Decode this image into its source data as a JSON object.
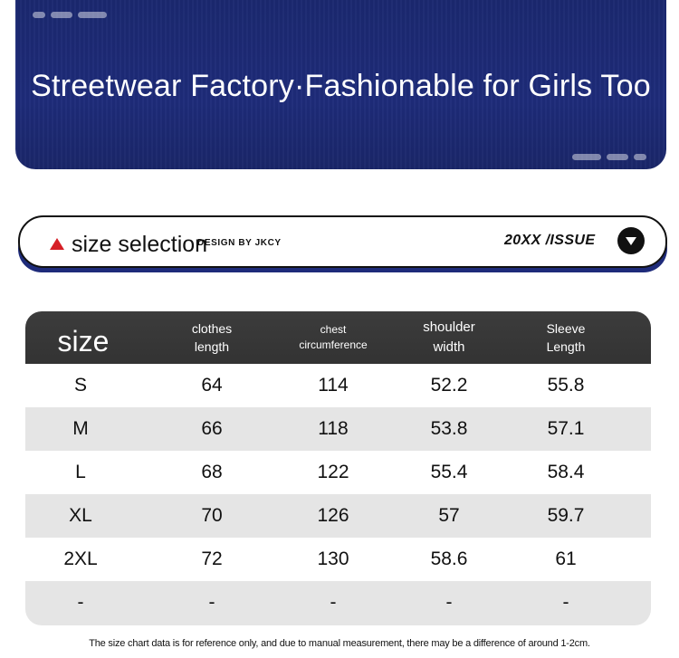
{
  "banner": {
    "title": "Streetwear Factory·Fashionable for Girls Too",
    "background_color": "#1e2b7a"
  },
  "size_selection": {
    "title": "size selection",
    "design_by": "DESIGN  BY JKCY",
    "issue": "20XX /ISSUE",
    "marker_icon": "red-triangle-icon",
    "dropdown_icon": "chevron-down-circle-icon"
  },
  "size_table": {
    "headers": {
      "size": "size",
      "clothes_length": "clothes\nlength",
      "chest": "chest\ncircumference",
      "shoulder": "shoulder\nwidth",
      "sleeve": "Sleeve\nLength"
    },
    "rows": [
      {
        "size": "S",
        "clothes_length": "64",
        "chest": "114",
        "shoulder": "52.2",
        "sleeve": "55.8"
      },
      {
        "size": "M",
        "clothes_length": "66",
        "chest": "118",
        "shoulder": "53.8",
        "sleeve": "57.1"
      },
      {
        "size": "L",
        "clothes_length": "68",
        "chest": "122",
        "shoulder": "55.4",
        "sleeve": "58.4"
      },
      {
        "size": "XL",
        "clothes_length": "70",
        "chest": "126",
        "shoulder": "57",
        "sleeve": "59.7"
      },
      {
        "size": "2XL",
        "clothes_length": "72",
        "chest": "130",
        "shoulder": "58.6",
        "sleeve": "61"
      },
      {
        "size": "-",
        "clothes_length": "-",
        "chest": "-",
        "shoulder": "-",
        "sleeve": "-"
      }
    ],
    "header_color": "#3a3a3a",
    "alt_row_color": "#e5e5e5"
  },
  "footnote": "The size chart data is for reference only, and due to manual measurement, there may be a difference of around 1-2cm."
}
